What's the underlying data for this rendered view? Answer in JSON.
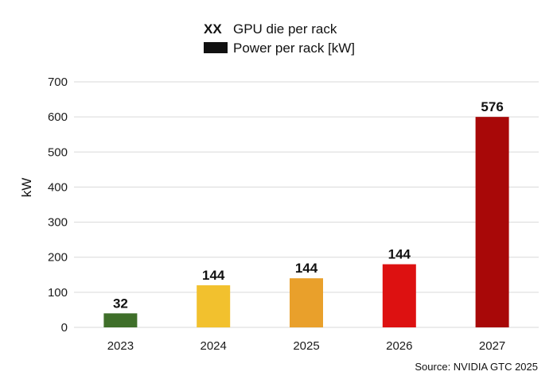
{
  "chart_data": {
    "type": "bar",
    "categories": [
      "2023",
      "2024",
      "2025",
      "2026",
      "2027"
    ],
    "series": [
      {
        "name": "Power per rack [kW]",
        "values": [
          40,
          120,
          140,
          180,
          600
        ],
        "colors": [
          "#3f6f2a",
          "#f2c12e",
          "#e9a02b",
          "#dd1111",
          "#a80808"
        ]
      }
    ],
    "data_labels": [
      "32",
      "144",
      "144",
      "144",
      "576"
    ],
    "legend": [
      {
        "key": "XX",
        "label": "GPU die per rack"
      },
      {
        "key": "swatch",
        "label": "Power per rack [kW]",
        "color": "#111111"
      }
    ],
    "legend_position": "top-center",
    "ylabel": "kW",
    "ylim": [
      0,
      700
    ],
    "yticks": [
      0,
      100,
      200,
      300,
      400,
      500,
      600,
      700
    ],
    "grid": true,
    "source": "Source: NVIDIA GTC 2025"
  }
}
